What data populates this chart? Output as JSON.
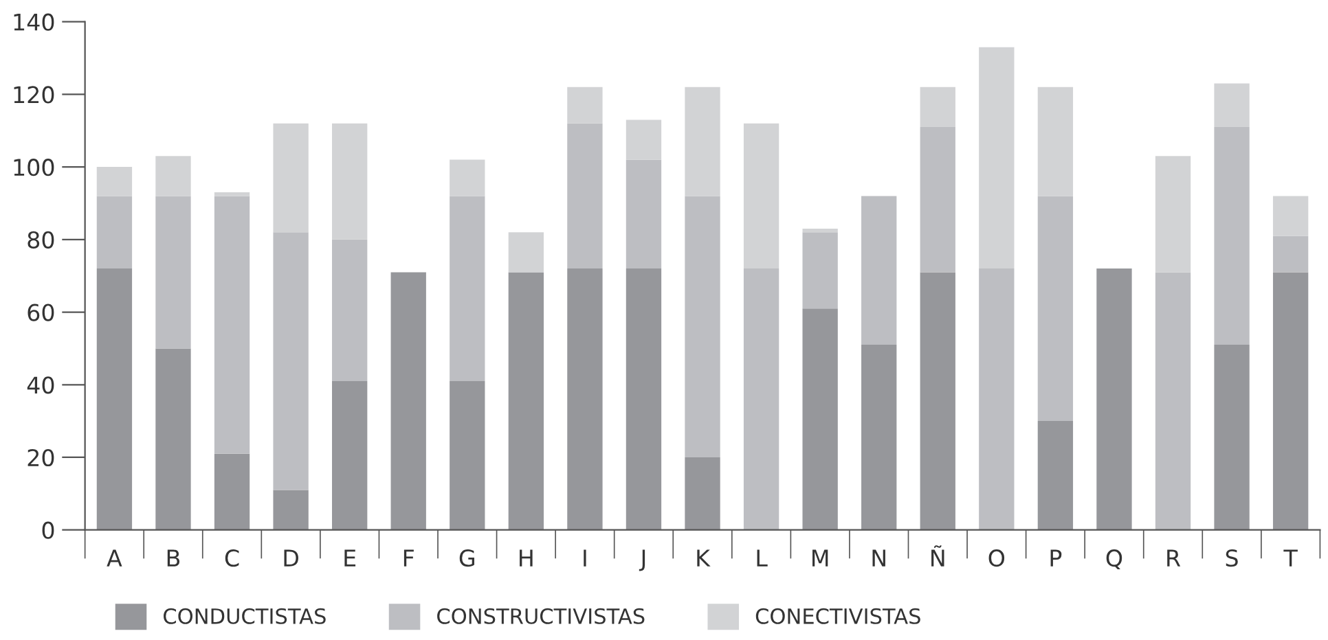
{
  "chart_data": {
    "type": "bar",
    "stacked": true,
    "categories": [
      "A",
      "B",
      "C",
      "D",
      "E",
      "F",
      "G",
      "H",
      "I",
      "J",
      "K",
      "L",
      "M",
      "N",
      "Ñ",
      "O",
      "P",
      "Q",
      "R",
      "S",
      "T"
    ],
    "series": [
      {
        "name": "CONDUCTISTAS",
        "color": "#96979b",
        "values": [
          72,
          50,
          21,
          11,
          41,
          71,
          41,
          71,
          72,
          72,
          20,
          0,
          61,
          51,
          71,
          0,
          30,
          72,
          0,
          51,
          71
        ]
      },
      {
        "name": "CONSTRUCTIVISTAS",
        "color": "#bdbec2",
        "values": [
          20,
          42,
          71,
          71,
          39,
          0,
          51,
          0,
          40,
          30,
          72,
          72,
          21,
          41,
          40,
          72,
          62,
          0,
          71,
          60,
          10
        ]
      },
      {
        "name": "CONECTIVISTAS",
        "color": "#d2d3d5",
        "values": [
          8,
          11,
          1,
          30,
          32,
          0,
          10,
          11,
          10,
          11,
          30,
          40,
          1,
          0,
          11,
          61,
          30,
          0,
          32,
          12,
          11
        ]
      }
    ],
    "ylim": [
      0,
      140
    ],
    "yticks": [
      0,
      20,
      40,
      60,
      80,
      100,
      120,
      140
    ],
    "grid": false,
    "legend": "bottom"
  }
}
